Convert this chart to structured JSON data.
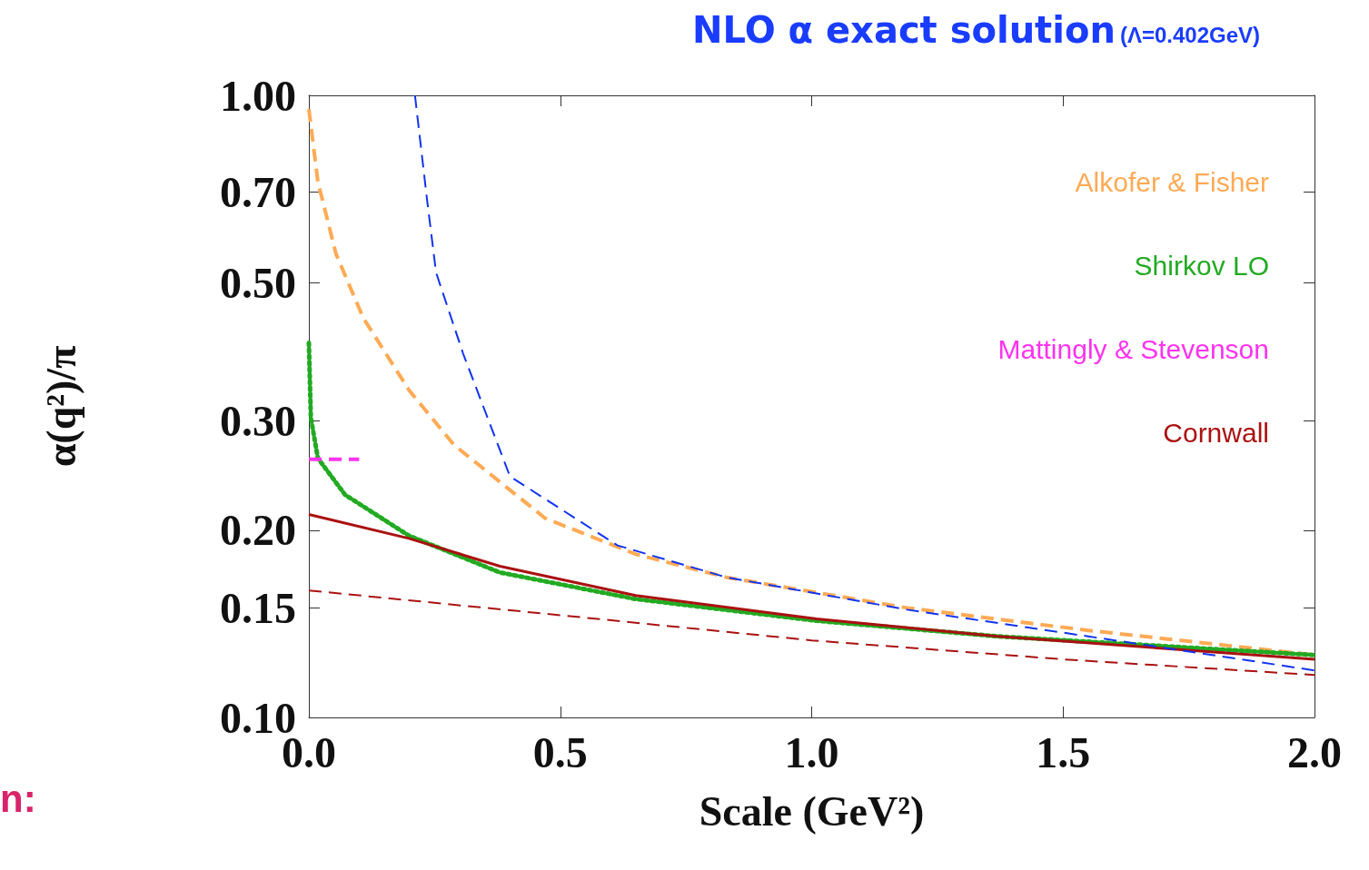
{
  "chart_data": {
    "type": "line",
    "title": "NLO α exact solution",
    "subtitle": "(Λ=0.402GeV)",
    "xlabel": "Scale (GeV²)",
    "ylabel": "α(q²)/π",
    "annotations": [
      "n:"
    ],
    "log": "y",
    "xlim": [
      0,
      2
    ],
    "xticks": [
      {
        "value": 0,
        "label": "0.0"
      },
      0.5,
      {
        "value": 1,
        "label": "1.0"
      },
      1.5,
      {
        "value": 2,
        "label": "2.0"
      }
    ],
    "ylim": [
      0.1,
      1
    ],
    "yticks": [
      {
        "value": 0.1,
        "label": "0.10"
      },
      0.15,
      {
        "value": 0.2,
        "label": "0.20"
      },
      {
        "value": 0.3,
        "label": "0.30"
      },
      {
        "value": 0.5,
        "label": "0.50"
      },
      {
        "value": 0.7,
        "label": "0.70"
      },
      {
        "value": 1,
        "label": "1.00"
      }
    ],
    "grid": false,
    "legend": "right",
    "marker": "none",
    "series": [
      {
        "name": "Alkofer & Fisher",
        "color": "#ffaa55",
        "line_style": "dashed",
        "x": [
          0,
          0.018,
          0.054,
          0.108,
          0.199,
          0.289,
          0.47,
          0.65,
          0.83,
          1.19,
          1.55,
          2.0
        ],
        "values": [
          0.95,
          0.726,
          0.556,
          0.439,
          0.336,
          0.274,
          0.209,
          0.183,
          0.168,
          0.15,
          0.138,
          0.126
        ]
      },
      {
        "name": "Shirkov LO",
        "color": "#22aa22",
        "line_style": "dotted",
        "x": [
          0,
          0.004,
          0.018,
          0.072,
          0.199,
          0.38,
          0.65,
          1.01,
          1.37,
          2.0
        ],
        "values": [
          0.4,
          0.303,
          0.261,
          0.228,
          0.196,
          0.171,
          0.155,
          0.143,
          0.135,
          0.126
        ]
      },
      {
        "name": "Mattingly & Stevenson",
        "color": "#ff33ee",
        "line_style": "dashed",
        "x": [
          0,
          0.1
        ],
        "values": [
          0.26,
          0.26
        ]
      },
      {
        "name": "Cornwall",
        "color": "#aa1111",
        "line_style": "solid",
        "x": [
          0,
          0.199,
          0.38,
          0.65,
          1.01,
          1.37,
          2.0
        ],
        "values": [
          0.212,
          0.194,
          0.175,
          0.157,
          0.144,
          0.135,
          0.124
        ]
      },
      {
        "color": "#aa1111",
        "line_style": "dashed",
        "x": [
          0,
          0.5,
          1.0,
          1.5,
          2.0
        ],
        "values": [
          0.16,
          0.146,
          0.133,
          0.124,
          0.117
        ]
      },
      {
        "color": "#1133ee",
        "line_style": "dashed",
        "x": [
          0.211,
          0.235,
          0.253,
          0.307,
          0.4,
          0.614,
          0.83,
          1.19,
          1.55,
          2.0
        ],
        "values": [
          1.0,
          0.68,
          0.519,
          0.384,
          0.244,
          0.189,
          0.168,
          0.149,
          0.135,
          0.119
        ]
      }
    ]
  }
}
